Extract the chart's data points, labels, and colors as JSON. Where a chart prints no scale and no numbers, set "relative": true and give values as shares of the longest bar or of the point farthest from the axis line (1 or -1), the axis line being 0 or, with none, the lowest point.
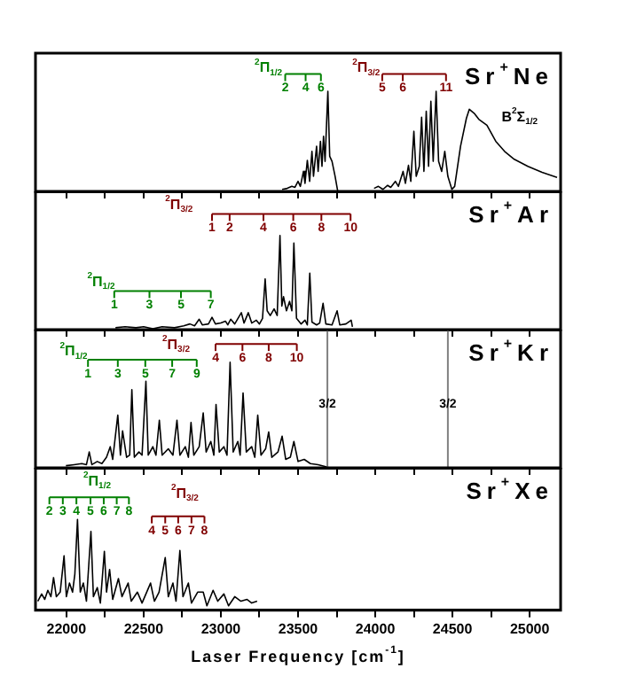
{
  "chart_data": [
    {
      "type": "line",
      "title": "Sr$^{+}$Ne",
      "relative": true,
      "xlim": [
        21800,
        25200
      ],
      "xticks": [
        22000,
        {
          "value": 22250,
          "label": null
        },
        22500,
        {
          "value": 22750,
          "label": null
        },
        23000,
        {
          "value": 23250,
          "label": null
        },
        23500,
        {
          "value": 23750,
          "label": null
        },
        24000,
        {
          "value": 24250,
          "label": null
        },
        24500,
        {
          "value": 24750,
          "label": null
        },
        25000
      ],
      "tick_labels": false,
      "series": [
        {
          "color": "#000000",
          "x": [
            23397,
            23430,
            23460,
            23480,
            23500,
            23515,
            23535,
            23545,
            23560,
            23575,
            23590,
            23600,
            23620,
            23630,
            23645,
            23655,
            23665,
            23675,
            23693,
            23705,
            23720,
            23740,
            23757,
            23870,
            23992,
            24020,
            24050,
            24080,
            24100,
            24130,
            24150,
            24180,
            24195,
            24215,
            24230,
            24250,
            24265,
            24285,
            24300,
            24315,
            24330,
            24345,
            24360,
            24375,
            24394,
            24410,
            24430,
            24450,
            24470,
            24496,
            24514,
            24552,
            24590,
            24609,
            24640,
            24670,
            24723,
            24780,
            24837,
            24900,
            24988,
            25080,
            25177
          ],
          "values": [
            0.02,
            0.03,
            0.05,
            0.04,
            0.1,
            0.05,
            0.2,
            0.08,
            0.31,
            0.1,
            0.4,
            0.15,
            0.45,
            0.2,
            0.5,
            0.25,
            0.55,
            0.3,
            1.0,
            0.35,
            0.3,
            0.15,
            0.0,
            null,
            0.03,
            0.05,
            0.02,
            0.06,
            0.04,
            0.1,
            0.05,
            0.2,
            0.08,
            0.26,
            0.1,
            0.6,
            0.15,
            0.25,
            0.74,
            0.2,
            0.8,
            0.25,
            0.9,
            0.3,
            1.0,
            0.3,
            0.2,
            0.4,
            0.15,
            0.02,
            0.05,
            0.45,
            0.73,
            0.82,
            0.78,
            0.72,
            0.66,
            0.5,
            0.4,
            0.32,
            0.25,
            0.19,
            0.14
          ]
        }
      ],
      "annotations": [
        "$^{2}$Π$_{1/2}$",
        "2",
        "4",
        "6",
        "$^{2}$Π$_{3/2}$",
        "5",
        "6",
        "11",
        "B$^{2}$Σ$_{1/2}$"
      ]
    },
    {
      "type": "line",
      "title": "Sr$^{+}$Ar",
      "relative": true,
      "xlim": [
        21800,
        25200
      ],
      "xticks": [
        22000,
        {
          "value": 22250,
          "label": null
        },
        22500,
        {
          "value": 22750,
          "label": null
        },
        23000,
        {
          "value": 23250,
          "label": null
        },
        23500,
        {
          "value": 23750,
          "label": null
        },
        24000,
        {
          "value": 24250,
          "label": null
        },
        24500,
        {
          "value": 24750,
          "label": null
        },
        25000
      ],
      "tick_labels": false,
      "series": [
        {
          "color": "#000000",
          "x": [
            22318,
            22380,
            22450,
            22500,
            22560,
            22620,
            22700,
            22760,
            22800,
            22830,
            22860,
            22880,
            22920,
            22943,
            22965,
            23000,
            23030,
            23045,
            23064,
            23090,
            23133,
            23150,
            23178,
            23200,
            23230,
            23250,
            23270,
            23287,
            23300,
            23320,
            23345,
            23365,
            23383,
            23395,
            23406,
            23425,
            23445,
            23460,
            23473,
            23490,
            23520,
            23545,
            23560,
            23576,
            23590,
            23620,
            23640,
            23662,
            23680,
            23720,
            23753,
            23770,
            23810,
            23844,
            23852
          ],
          "values": [
            0.02,
            0.03,
            0.02,
            0.03,
            0.01,
            0.03,
            0.02,
            0.04,
            0.06,
            0.04,
            0.11,
            0.05,
            0.06,
            0.13,
            0.06,
            0.07,
            0.09,
            0.05,
            0.11,
            0.06,
            0.18,
            0.07,
            0.18,
            0.07,
            0.1,
            0.06,
            0.12,
            0.54,
            0.2,
            0.15,
            0.22,
            0.15,
            1.0,
            0.25,
            0.35,
            0.2,
            0.3,
            0.2,
            0.92,
            0.12,
            0.06,
            0.1,
            0.05,
            0.6,
            0.08,
            0.05,
            0.07,
            0.28,
            0.06,
            0.05,
            0.2,
            0.05,
            0.06,
            0.1,
            0.03
          ]
        }
      ],
      "annotations": [
        "$^{2}$Π$_{1/2}$",
        "1",
        "3",
        "5",
        "7",
        "$^{2}$Π$_{3/2}$",
        "1",
        "2",
        "4",
        "6",
        "8",
        "10"
      ]
    },
    {
      "type": "line",
      "title": "Sr$^{+}$Kr",
      "relative": true,
      "xlim": [
        21800,
        25200
      ],
      "xticks": [
        22000,
        {
          "value": 22250,
          "label": null
        },
        22500,
        {
          "value": 22750,
          "label": null
        },
        23000,
        {
          "value": 23250,
          "label": null
        },
        23500,
        {
          "value": 23750,
          "label": null
        },
        24000,
        {
          "value": 24250,
          "label": null
        },
        24500,
        {
          "value": 24750,
          "label": null
        },
        25000
      ],
      "tick_labels": false,
      "ref_lines": [
        {
          "axis": "x",
          "value": 23690,
          "color": "#808080"
        },
        {
          "axis": "x",
          "value": 24470,
          "color": "#808080"
        }
      ],
      "series": [
        {
          "color": "#000000",
          "x": [
            21997,
            22050,
            22100,
            22130,
            22148,
            22165,
            22200,
            22230,
            22260,
            22284,
            22300,
            22333,
            22350,
            22364,
            22390,
            22410,
            22424,
            22440,
            22470,
            22490,
            22515,
            22530,
            22560,
            22580,
            22602,
            22620,
            22660,
            22690,
            22716,
            22735,
            22770,
            22790,
            22807,
            22825,
            22860,
            22886,
            22905,
            22935,
            22955,
            22969,
            22990,
            23020,
            23040,
            23060,
            23080,
            23110,
            23125,
            23144,
            23165,
            23200,
            23220,
            23239,
            23260,
            23290,
            23310,
            23330,
            23370,
            23397,
            23420,
            23450,
            23473,
            23500,
            23540,
            23580,
            23630,
            23680,
            23703
          ],
          "values": [
            0.02,
            0.03,
            0.04,
            0.03,
            0.15,
            0.03,
            0.06,
            0.04,
            0.1,
            0.2,
            0.08,
            0.5,
            0.12,
            0.35,
            0.1,
            0.12,
            0.74,
            0.1,
            0.15,
            0.12,
            0.82,
            0.12,
            0.2,
            0.12,
            0.45,
            0.12,
            0.18,
            0.12,
            0.45,
            0.12,
            0.2,
            0.1,
            0.43,
            0.12,
            0.2,
            0.52,
            0.15,
            0.25,
            0.12,
            0.6,
            0.15,
            0.2,
            0.12,
            1.0,
            0.15,
            0.25,
            0.12,
            0.71,
            0.15,
            0.2,
            0.1,
            0.5,
            0.12,
            0.18,
            0.34,
            0.1,
            0.15,
            0.3,
            0.08,
            0.1,
            0.25,
            0.06,
            0.08,
            0.04,
            0.03,
            0.01,
            0.0
          ]
        }
      ],
      "annotations": [
        "$^{2}$Π$_{1/2}$",
        "1",
        "3",
        "5",
        "7",
        "9",
        "$^{2}$Π$_{3/2}$",
        "4",
        "6",
        "8",
        "10",
        "3/2",
        "3/2"
      ]
    },
    {
      "type": "line",
      "title": "Sr$^{+}$Xe",
      "xlabel": "Laser Frequency [cm$^{-1}$]",
      "relative": true,
      "xlim": [
        21800,
        25200
      ],
      "xticks": [
        22000,
        {
          "value": 22250,
          "label": null
        },
        22500,
        {
          "value": 22750,
          "label": null
        },
        23000,
        {
          "value": 23250,
          "label": null
        },
        23500,
        {
          "value": 23750,
          "label": null
        },
        24000,
        {
          "value": 24250,
          "label": null
        },
        24500,
        {
          "value": 24750,
          "label": null
        },
        25000
      ],
      "tick_labels": "x",
      "series": [
        {
          "color": "#000000",
          "x": [
            21815,
            21840,
            21860,
            21880,
            21900,
            21917,
            21935,
            21960,
            21985,
            22000,
            22020,
            22040,
            22055,
            22072,
            22090,
            22110,
            22130,
            22159,
            22175,
            22200,
            22220,
            22246,
            22260,
            22280,
            22300,
            22337,
            22360,
            22400,
            22420,
            22460,
            22490,
            22520,
            22545,
            22570,
            22600,
            22640,
            22660,
            22690,
            22710,
            22735,
            22755,
            22790,
            22810,
            22850,
            22886,
            22910,
            22950,
            22980,
            23020,
            23050,
            23090,
            23130,
            23170,
            23200,
            23235
          ],
          "values": [
            0.1,
            0.18,
            0.12,
            0.22,
            0.15,
            0.36,
            0.15,
            0.2,
            0.6,
            0.15,
            0.3,
            0.2,
            0.4,
            1.0,
            0.2,
            0.3,
            0.1,
            0.87,
            0.15,
            0.25,
            0.08,
            0.65,
            0.2,
            0.45,
            0.12,
            0.35,
            0.15,
            0.3,
            0.1,
            0.2,
            0.08,
            0.2,
            0.3,
            0.1,
            0.2,
            0.58,
            0.15,
            0.3,
            0.1,
            0.66,
            0.15,
            0.3,
            0.08,
            0.2,
            0.2,
            0.05,
            0.22,
            0.1,
            0.18,
            0.05,
            0.15,
            0.1,
            0.12,
            0.08,
            0.1
          ]
        }
      ],
      "annotations": [
        "$^{2}$Π$_{1/2}$",
        "2",
        "3",
        "4",
        "5",
        "6",
        "7",
        "8",
        "$^{2}$Π$_{3/2}$",
        "4",
        "5",
        "6",
        "7",
        "8"
      ]
    }
  ]
}
